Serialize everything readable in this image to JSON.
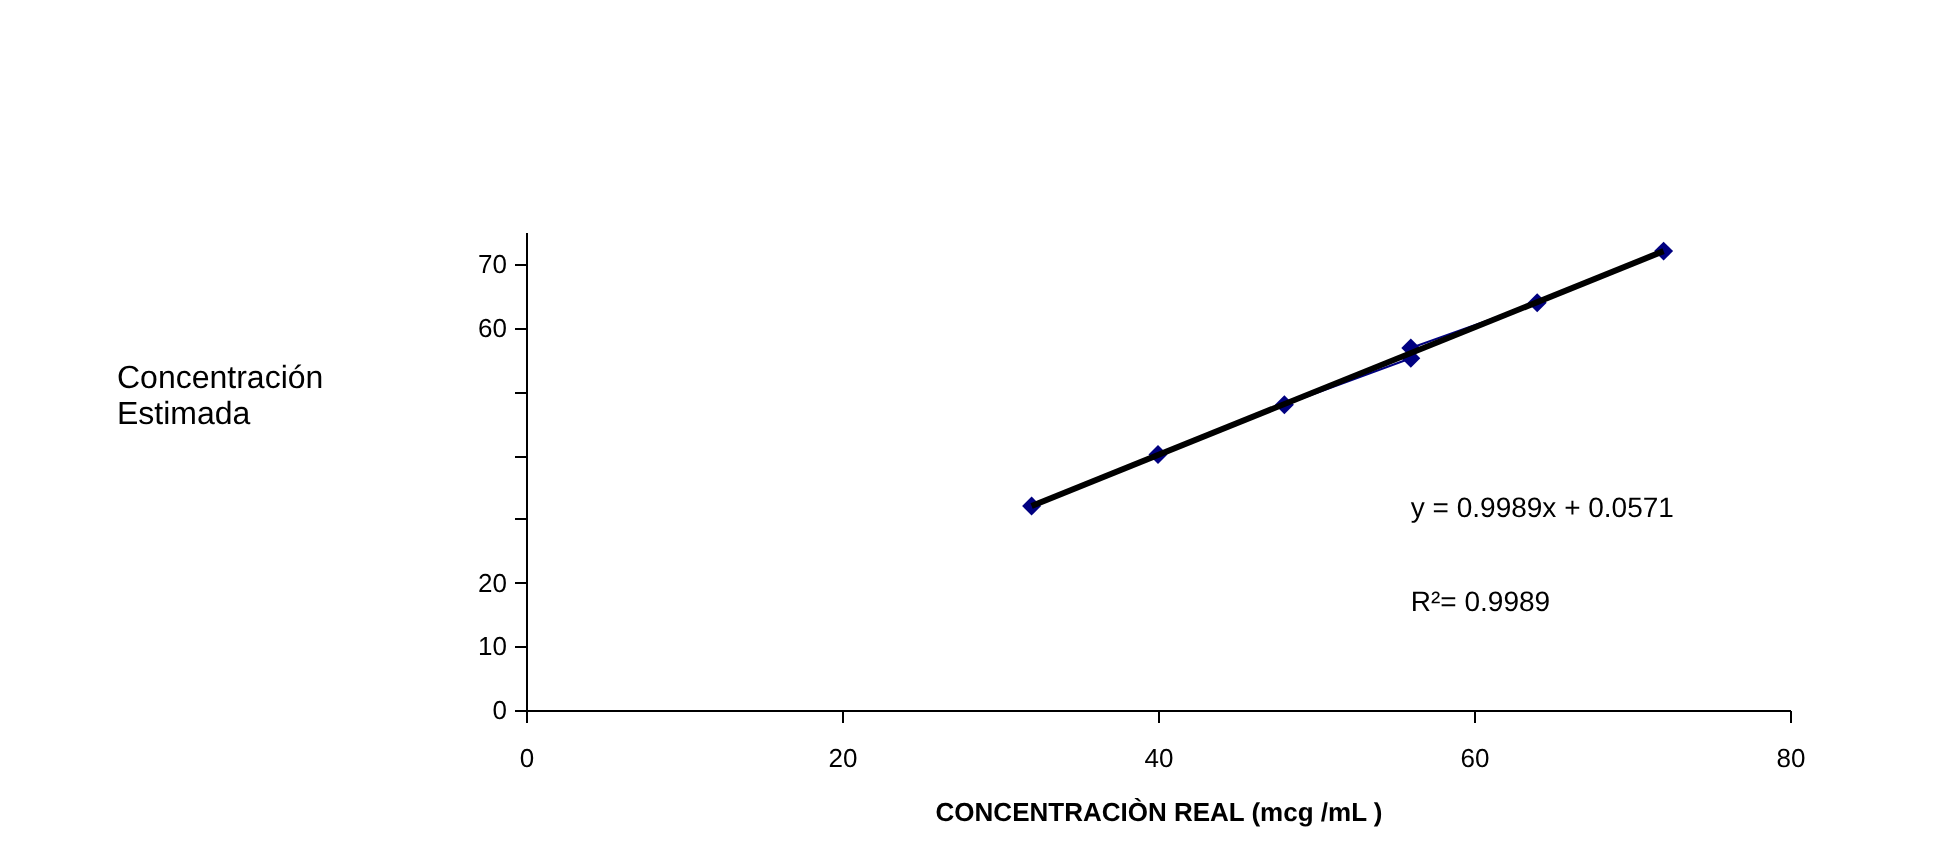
{
  "chart_data": {
    "type": "line",
    "xlabel": "CONCENTRACIÒN REAL (mcg /mL )",
    "ylabel": "Concentración Estimada",
    "x": [
      32,
      40,
      48,
      56,
      56,
      64,
      72
    ],
    "series": [
      {
        "color": "#000080",
        "marker": "diamond",
        "values": [
          32.0,
          40.1,
          47.9,
          55.2,
          56.8,
          63.9,
          72.0
        ]
      },
      {
        "color": "#000000",
        "marker": "none",
        "x": [
          32,
          72
        ],
        "values": [
          32.0,
          72.0
        ]
      }
    ],
    "xlim": [
      0,
      80
    ],
    "xticks": [
      0,
      20,
      40,
      60,
      80
    ],
    "ylim": [
      0,
      75
    ],
    "yticks": [
      0,
      10,
      20,
      {
        "value": 30,
        "label": null
      },
      {
        "value": 40,
        "label": null
      },
      {
        "value": 50,
        "label": null
      },
      60,
      70
    ],
    "annotations": [
      "y = 0.9989x + 0.0571",
      "R²= 0.9989"
    ],
    "grid": false
  }
}
